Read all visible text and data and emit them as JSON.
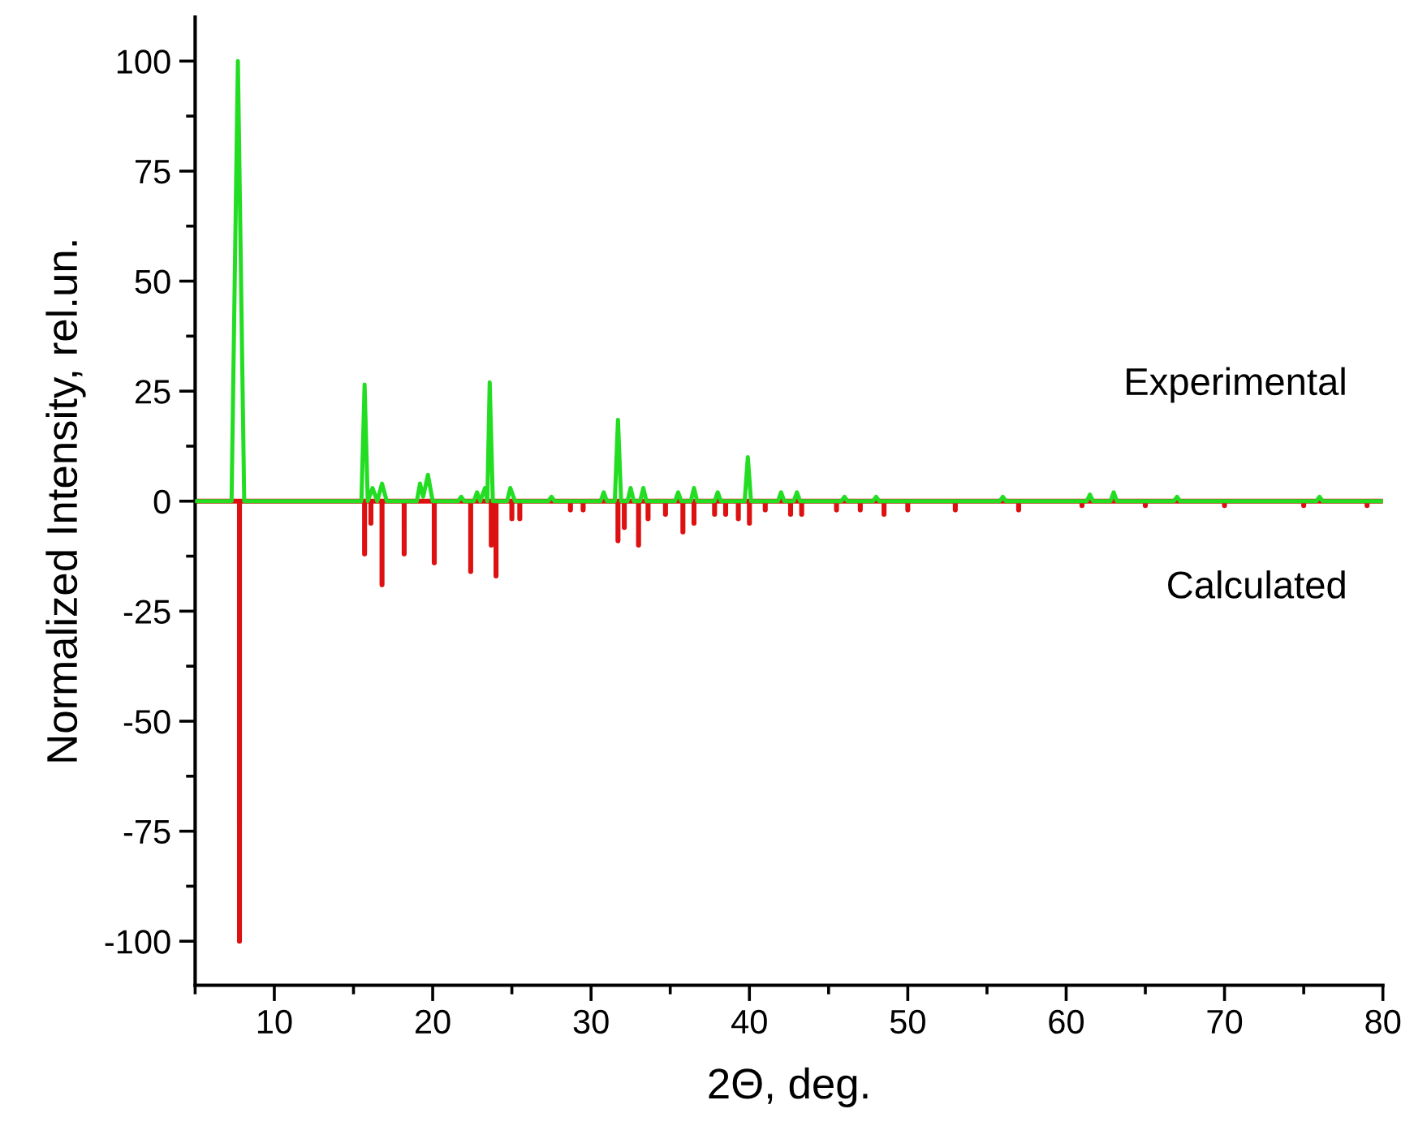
{
  "chart_data": {
    "type": "line",
    "xlabel": "2Θ, deg.",
    "ylabel": "Normalized Intensity, rel.un.",
    "xlim": [
      5,
      80
    ],
    "xticks": [
      10,
      20,
      30,
      40,
      50,
      60,
      70,
      80
    ],
    "ylim": [
      -110,
      110
    ],
    "yticks": [
      -100,
      -75,
      -50,
      -25,
      0,
      25,
      50,
      75,
      100
    ],
    "grid": false,
    "legend": false,
    "series": [
      {
        "name": "Experimental",
        "color": "#22dd22",
        "x": [
          5,
          7.3,
          7.7,
          8.1,
          15.5,
          15.7,
          15.9,
          16.2,
          16.5,
          16.8,
          17.1,
          19.0,
          19.2,
          19.4,
          19.7,
          20.0,
          21.6,
          21.8,
          22.0,
          22.6,
          22.8,
          23.0,
          23.3,
          23.45,
          23.6,
          23.8,
          24.7,
          24.9,
          25.2,
          27.3,
          27.5,
          27.7,
          30.6,
          30.8,
          31.0,
          31.5,
          31.7,
          31.9,
          32.3,
          32.5,
          32.7,
          33.1,
          33.3,
          33.5,
          35.3,
          35.5,
          35.7,
          36.3,
          36.5,
          36.7,
          37.8,
          38.0,
          38.2,
          39.7,
          39.9,
          40.1,
          41.8,
          42,
          42.2,
          42.8,
          43,
          43.2,
          45.8,
          46,
          46.2,
          47.8,
          48,
          48.2,
          55.8,
          56,
          56.2,
          61.3,
          61.5,
          61.7,
          62.8,
          63,
          63.2,
          66.8,
          67,
          67.2,
          75.8,
          76,
          76.2,
          80
        ],
        "values": [
          0,
          0,
          100,
          0,
          0,
          26.5,
          0,
          3,
          0,
          4,
          0,
          0,
          4,
          1,
          6,
          0,
          0,
          1,
          0,
          0,
          2,
          0,
          3,
          0,
          27,
          0,
          0,
          3,
          0,
          0,
          1,
          0,
          0,
          2,
          0,
          0,
          18.5,
          0,
          0,
          3,
          0,
          0,
          3,
          0,
          0,
          2,
          0,
          0,
          3,
          0,
          0,
          2,
          0,
          0,
          10,
          0,
          0,
          2,
          0,
          0,
          2,
          0,
          0,
          1,
          0,
          0,
          1,
          0,
          0,
          1,
          0,
          0,
          1.5,
          0,
          0,
          2,
          0,
          0,
          1,
          0,
          0,
          1,
          0,
          0
        ]
      },
      {
        "name": "Calculated",
        "color": "#dd1111",
        "x": [
          5,
          7.8,
          7.8,
          7.8,
          15.7,
          15.7,
          15.7,
          16.1,
          16.1,
          16.1,
          16.8,
          16.8,
          16.8,
          18.2,
          18.2,
          18.2,
          20.1,
          20.1,
          20.1,
          22.4,
          22.4,
          22.4,
          23.7,
          23.7,
          23.7,
          24.0,
          24.0,
          24.0,
          25.0,
          25.0,
          25.0,
          25.5,
          25.5,
          25.5,
          28.7,
          28.7,
          28.7,
          29.5,
          29.5,
          29.5,
          31.7,
          31.7,
          31.7,
          32.1,
          32.1,
          32.1,
          33.0,
          33.0,
          33.0,
          33.6,
          33.6,
          33.6,
          34.7,
          34.7,
          34.7,
          35.8,
          35.8,
          35.8,
          36.5,
          36.5,
          36.5,
          37.8,
          37.8,
          37.8,
          38.5,
          38.5,
          38.5,
          39.3,
          39.3,
          39.3,
          40.0,
          40.0,
          40.0,
          41.0,
          41.0,
          41.0,
          42.6,
          42.6,
          42.6,
          43.3,
          43.3,
          43.3,
          45.5,
          45.5,
          45.5,
          47,
          47,
          47,
          48.5,
          48.5,
          48.5,
          50,
          50,
          50,
          53,
          53,
          53,
          57,
          57,
          57,
          61,
          61,
          61,
          65,
          65,
          65,
          70,
          70,
          70,
          75,
          75,
          75,
          79,
          79,
          79,
          80
        ],
        "values": [
          0,
          0,
          -100,
          0,
          0,
          -12,
          0,
          0,
          -5,
          0,
          0,
          -19,
          0,
          0,
          -12,
          0,
          0,
          -14,
          0,
          0,
          -16,
          0,
          0,
          -10,
          0,
          0,
          -17,
          0,
          0,
          -4,
          0,
          0,
          -4,
          0,
          0,
          -2,
          0,
          0,
          -2,
          0,
          0,
          -9,
          0,
          0,
          -6,
          0,
          0,
          -10,
          0,
          0,
          -4,
          0,
          0,
          -3,
          0,
          0,
          -7,
          0,
          0,
          -5,
          0,
          0,
          -3,
          0,
          0,
          -3,
          0,
          0,
          -4,
          0,
          0,
          -5,
          0,
          0,
          -2,
          0,
          0,
          -3,
          0,
          0,
          -3,
          0,
          0,
          -2,
          0,
          0,
          -2,
          0,
          0,
          -3,
          0,
          0,
          -2,
          0,
          0,
          -2,
          0,
          0,
          -2,
          0,
          0,
          -1,
          0,
          0,
          -1,
          0,
          0,
          -1,
          0,
          0,
          -1,
          0,
          0,
          -1,
          0,
          0
        ]
      }
    ]
  }
}
